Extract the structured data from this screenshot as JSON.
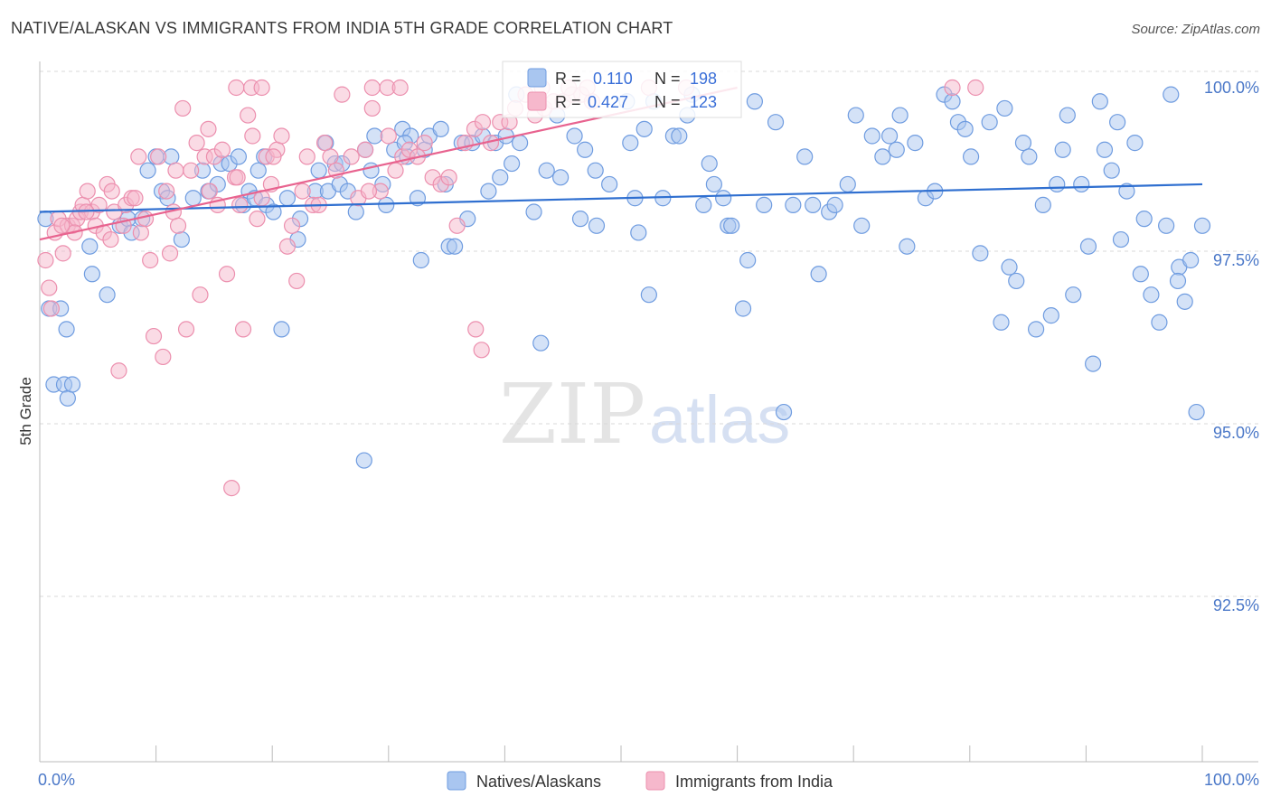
{
  "title": "NATIVE/ALASKAN VS IMMIGRANTS FROM INDIA 5TH GRADE CORRELATION CHART",
  "source": "Source: ZipAtlas.com",
  "watermark": {
    "zip": "ZIP",
    "atlas": "atlas"
  },
  "colors": {
    "blue_fill": "#a9c6f0",
    "blue_stroke": "#6f9ce0",
    "blue_line": "#2f6fd0",
    "pink_fill": "#f6b8cc",
    "pink_stroke": "#ec8fae",
    "pink_line": "#e8638f",
    "tick_text": "#4b78c8",
    "grid": "#d9d9d9"
  },
  "legend_box": {
    "r_label": "R =",
    "n_label": "N =",
    "rows": [
      {
        "series": "Natives/Alaskans",
        "r": "0.110",
        "n": "198",
        "color": "blue"
      },
      {
        "series": "Immigrants from India",
        "r": "0.427",
        "n": "123",
        "color": "pink"
      }
    ]
  },
  "chart_data": {
    "type": "scatter",
    "title": "NATIVE/ALASKAN VS IMMIGRANTS FROM INDIA 5TH GRADE CORRELATION CHART",
    "xlabel": "",
    "ylabel": "5th Grade",
    "xlim": [
      0,
      100
    ],
    "ylim": [
      90.0,
      100.2
    ],
    "x_tick_labels": [
      "0.0%",
      "100.0%"
    ],
    "y_ticks": [
      {
        "value": 100.0,
        "label": "100.0%"
      },
      {
        "value": 97.5,
        "label": "97.5%"
      },
      {
        "value": 95.0,
        "label": "95.0%"
      },
      {
        "value": 92.5,
        "label": "92.5%"
      }
    ],
    "grid": true,
    "legend_position": "bottom-center",
    "series": [
      {
        "name": "Natives/Alaskans",
        "color": "blue",
        "trend": {
          "x0": 0,
          "y0": 98.2,
          "x1": 100,
          "y1": 98.6
        },
        "points": [
          [
            0.5,
            98.1
          ],
          [
            0.8,
            96.8
          ],
          [
            1.2,
            95.7
          ],
          [
            1.8,
            96.8
          ],
          [
            2.1,
            95.7
          ],
          [
            2.3,
            96.5
          ],
          [
            2.4,
            95.5
          ],
          [
            2.8,
            95.7
          ],
          [
            4.3,
            97.7
          ],
          [
            4.5,
            97.3
          ],
          [
            5.8,
            97.0
          ],
          [
            6.9,
            98.0
          ],
          [
            7.6,
            98.1
          ],
          [
            7.9,
            97.9
          ],
          [
            8.8,
            98.1
          ],
          [
            9.3,
            98.8
          ],
          [
            10.0,
            99.0
          ],
          [
            10.5,
            98.5
          ],
          [
            11.0,
            98.4
          ],
          [
            11.3,
            99.0
          ],
          [
            12.2,
            97.8
          ],
          [
            13.2,
            98.4
          ],
          [
            14.0,
            98.8
          ],
          [
            14.5,
            98.5
          ],
          [
            15.3,
            98.6
          ],
          [
            15.6,
            98.9
          ],
          [
            16.3,
            98.9
          ],
          [
            17.1,
            99.0
          ],
          [
            17.5,
            98.3
          ],
          [
            18.0,
            98.5
          ],
          [
            18.5,
            98.4
          ],
          [
            18.8,
            98.8
          ],
          [
            19.3,
            99.0
          ],
          [
            19.5,
            98.3
          ],
          [
            20.1,
            98.2
          ],
          [
            20.8,
            96.5
          ],
          [
            21.3,
            98.4
          ],
          [
            22.2,
            97.8
          ],
          [
            22.4,
            98.1
          ],
          [
            23.7,
            98.5
          ],
          [
            24.0,
            98.8
          ],
          [
            24.6,
            99.2
          ],
          [
            24.8,
            98.5
          ],
          [
            25.4,
            98.9
          ],
          [
            25.8,
            98.6
          ],
          [
            26.0,
            98.9
          ],
          [
            26.5,
            98.5
          ],
          [
            27.2,
            98.2
          ],
          [
            27.9,
            94.6
          ],
          [
            28.0,
            99.1
          ],
          [
            28.5,
            98.8
          ],
          [
            28.8,
            99.3
          ],
          [
            29.5,
            98.6
          ],
          [
            29.8,
            98.3
          ],
          [
            30.5,
            99.1
          ],
          [
            31.2,
            99.4
          ],
          [
            31.6,
            99.0
          ],
          [
            31.9,
            99.3
          ],
          [
            32.5,
            98.4
          ],
          [
            32.8,
            97.5
          ],
          [
            33.1,
            99.1
          ],
          [
            33.5,
            99.3
          ],
          [
            34.5,
            99.4
          ],
          [
            34.9,
            98.6
          ],
          [
            35.2,
            97.7
          ],
          [
            35.7,
            97.7
          ],
          [
            36.3,
            99.2
          ],
          [
            36.8,
            98.1
          ],
          [
            37.2,
            99.2
          ],
          [
            38.1,
            99.3
          ],
          [
            38.6,
            98.5
          ],
          [
            39.2,
            99.2
          ],
          [
            39.6,
            98.7
          ],
          [
            40.1,
            99.3
          ],
          [
            40.6,
            98.9
          ],
          [
            41.0,
            99.9
          ],
          [
            41.3,
            99.2
          ],
          [
            42.5,
            98.2
          ],
          [
            43.1,
            96.3
          ],
          [
            43.6,
            98.8
          ],
          [
            44.8,
            98.7
          ],
          [
            46.5,
            98.1
          ],
          [
            46.9,
            99.1
          ],
          [
            47.8,
            98.8
          ],
          [
            47.9,
            98.0
          ],
          [
            49.0,
            98.6
          ],
          [
            50.5,
            99.8
          ],
          [
            50.8,
            99.2
          ],
          [
            51.2,
            98.4
          ],
          [
            51.5,
            97.9
          ],
          [
            52.0,
            99.4
          ],
          [
            52.4,
            97.0
          ],
          [
            52.8,
            99.8
          ],
          [
            53.6,
            98.4
          ],
          [
            54.5,
            99.3
          ],
          [
            55.0,
            99.3
          ],
          [
            56.1,
            99.9
          ],
          [
            57.1,
            98.3
          ],
          [
            57.6,
            98.9
          ],
          [
            58.0,
            98.6
          ],
          [
            58.8,
            98.4
          ],
          [
            59.2,
            98.0
          ],
          [
            59.5,
            98.0
          ],
          [
            60.5,
            96.8
          ],
          [
            60.9,
            97.5
          ],
          [
            61.5,
            99.8
          ],
          [
            62.3,
            98.3
          ],
          [
            63.3,
            99.5
          ],
          [
            64.0,
            95.3
          ],
          [
            64.8,
            98.3
          ],
          [
            65.8,
            99.0
          ],
          [
            66.5,
            98.3
          ],
          [
            67.0,
            97.3
          ],
          [
            67.9,
            98.2
          ],
          [
            68.4,
            98.3
          ],
          [
            69.5,
            98.6
          ],
          [
            70.7,
            98.0
          ],
          [
            71.6,
            99.3
          ],
          [
            72.5,
            99.0
          ],
          [
            73.1,
            99.3
          ],
          [
            73.7,
            99.1
          ],
          [
            74.6,
            97.7
          ],
          [
            75.3,
            99.2
          ],
          [
            76.2,
            98.4
          ],
          [
            77.0,
            98.5
          ],
          [
            77.8,
            99.9
          ],
          [
            78.5,
            99.8
          ],
          [
            79.0,
            99.5
          ],
          [
            79.6,
            99.4
          ],
          [
            80.1,
            99.0
          ],
          [
            80.9,
            97.6
          ],
          [
            81.7,
            99.5
          ],
          [
            82.7,
            96.6
          ],
          [
            83.0,
            99.7
          ],
          [
            83.4,
            97.4
          ],
          [
            84.0,
            97.2
          ],
          [
            84.6,
            99.2
          ],
          [
            85.1,
            99.0
          ],
          [
            85.7,
            96.5
          ],
          [
            86.3,
            98.3
          ],
          [
            87.0,
            96.7
          ],
          [
            87.5,
            98.6
          ],
          [
            88.0,
            99.1
          ],
          [
            88.9,
            97.0
          ],
          [
            89.6,
            98.6
          ],
          [
            90.2,
            97.7
          ],
          [
            90.6,
            96.0
          ],
          [
            91.2,
            99.8
          ],
          [
            91.6,
            99.1
          ],
          [
            92.2,
            98.8
          ],
          [
            93.0,
            97.8
          ],
          [
            93.5,
            98.5
          ],
          [
            94.2,
            99.2
          ],
          [
            94.7,
            97.3
          ],
          [
            95.0,
            98.1
          ],
          [
            95.6,
            97.0
          ],
          [
            96.3,
            96.6
          ],
          [
            96.9,
            98.0
          ],
          [
            97.3,
            99.9
          ],
          [
            98.0,
            97.4
          ],
          [
            98.5,
            96.9
          ],
          [
            99.0,
            97.5
          ],
          [
            99.5,
            95.3
          ],
          [
            100.0,
            98.0
          ],
          [
            31.4,
            99.2
          ],
          [
            46.0,
            99.3
          ],
          [
            55.7,
            99.6
          ],
          [
            44.5,
            99.6
          ],
          [
            70.2,
            99.6
          ],
          [
            74.0,
            99.6
          ],
          [
            88.4,
            99.6
          ],
          [
            92.7,
            99.5
          ],
          [
            97.9,
            97.2
          ]
        ]
      },
      {
        "name": "Immigrants from India",
        "color": "pink",
        "trend": {
          "x0": 0,
          "y0": 97.8,
          "x1": 60,
          "y1": 100.0
        },
        "points": [
          [
            0.5,
            97.5
          ],
          [
            0.8,
            97.1
          ],
          [
            1.0,
            96.8
          ],
          [
            1.3,
            97.9
          ],
          [
            1.6,
            98.1
          ],
          [
            2.0,
            97.6
          ],
          [
            2.4,
            98.0
          ],
          [
            2.8,
            98.0
          ],
          [
            3.2,
            98.1
          ],
          [
            3.5,
            98.2
          ],
          [
            3.7,
            98.3
          ],
          [
            4.1,
            98.5
          ],
          [
            4.5,
            98.2
          ],
          [
            4.8,
            98.0
          ],
          [
            5.1,
            98.3
          ],
          [
            5.5,
            97.9
          ],
          [
            5.8,
            98.6
          ],
          [
            6.1,
            97.8
          ],
          [
            6.4,
            98.2
          ],
          [
            6.8,
            95.9
          ],
          [
            7.2,
            98.0
          ],
          [
            7.4,
            98.3
          ],
          [
            7.9,
            98.4
          ],
          [
            8.2,
            98.4
          ],
          [
            8.7,
            97.9
          ],
          [
            9.1,
            98.1
          ],
          [
            9.5,
            97.5
          ],
          [
            9.8,
            96.4
          ],
          [
            10.2,
            99.0
          ],
          [
            10.6,
            96.1
          ],
          [
            10.9,
            98.5
          ],
          [
            11.2,
            97.6
          ],
          [
            11.5,
            98.2
          ],
          [
            11.9,
            98.0
          ],
          [
            12.3,
            99.7
          ],
          [
            12.6,
            96.5
          ],
          [
            13.0,
            98.8
          ],
          [
            13.5,
            99.2
          ],
          [
            13.8,
            97.0
          ],
          [
            14.2,
            99.0
          ],
          [
            14.6,
            98.5
          ],
          [
            15.0,
            99.0
          ],
          [
            15.3,
            98.3
          ],
          [
            15.7,
            99.1
          ],
          [
            16.1,
            97.3
          ],
          [
            16.5,
            94.2
          ],
          [
            16.8,
            98.7
          ],
          [
            17.2,
            98.3
          ],
          [
            17.5,
            96.5
          ],
          [
            17.9,
            99.6
          ],
          [
            18.3,
            99.3
          ],
          [
            18.7,
            98.1
          ],
          [
            19.1,
            98.4
          ],
          [
            19.5,
            99.0
          ],
          [
            19.9,
            98.6
          ],
          [
            20.4,
            99.1
          ],
          [
            20.8,
            99.3
          ],
          [
            21.3,
            97.7
          ],
          [
            21.7,
            98.0
          ],
          [
            22.1,
            97.2
          ],
          [
            22.6,
            98.5
          ],
          [
            23.0,
            99.0
          ],
          [
            23.5,
            98.3
          ],
          [
            24.0,
            98.3
          ],
          [
            24.5,
            99.2
          ],
          [
            25.0,
            99.0
          ],
          [
            25.5,
            98.8
          ],
          [
            26.0,
            99.9
          ],
          [
            26.8,
            99.0
          ],
          [
            27.4,
            98.4
          ],
          [
            28.0,
            99.1
          ],
          [
            28.6,
            99.7
          ],
          [
            29.3,
            98.5
          ],
          [
            30.0,
            99.3
          ],
          [
            30.6,
            98.8
          ],
          [
            31.2,
            99.0
          ],
          [
            31.8,
            99.1
          ],
          [
            32.5,
            99.0
          ],
          [
            33.1,
            99.2
          ],
          [
            33.8,
            98.7
          ],
          [
            34.5,
            98.6
          ],
          [
            35.2,
            98.7
          ],
          [
            35.9,
            98.0
          ],
          [
            36.6,
            99.2
          ],
          [
            37.4,
            99.4
          ],
          [
            38.1,
            99.5
          ],
          [
            38.8,
            99.2
          ],
          [
            39.6,
            99.5
          ],
          [
            40.4,
            99.5
          ],
          [
            40.9,
            99.7
          ],
          [
            41.8,
            99.9
          ],
          [
            42.6,
            99.6
          ],
          [
            43.4,
            99.7
          ],
          [
            44.2,
            99.8
          ],
          [
            45.0,
            99.8
          ],
          [
            45.8,
            99.9
          ],
          [
            46.6,
            99.9
          ],
          [
            47.5,
            99.8
          ],
          [
            37.5,
            96.5
          ],
          [
            38.0,
            96.2
          ],
          [
            28.3,
            98.5
          ],
          [
            20.1,
            99.0
          ],
          [
            17.0,
            98.7
          ],
          [
            14.5,
            99.4
          ],
          [
            11.7,
            98.8
          ],
          [
            8.5,
            99.0
          ],
          [
            6.2,
            98.5
          ],
          [
            4.0,
            98.2
          ],
          [
            3.0,
            97.9
          ],
          [
            1.9,
            98.0
          ],
          [
            16.9,
            100.0
          ],
          [
            18.2,
            100.0
          ],
          [
            19.1,
            100.0
          ],
          [
            28.6,
            100.0
          ],
          [
            29.9,
            100.0
          ],
          [
            31.0,
            100.0
          ],
          [
            43.2,
            100.0
          ],
          [
            45.5,
            100.0
          ],
          [
            47.1,
            100.0
          ],
          [
            52.4,
            100.0
          ],
          [
            55.6,
            100.0
          ],
          [
            78.5,
            100.0
          ],
          [
            80.5,
            100.0
          ]
        ]
      }
    ]
  },
  "bottom_legend": [
    {
      "label": "Natives/Alaskans",
      "color": "blue"
    },
    {
      "label": "Immigrants from India",
      "color": "pink"
    }
  ]
}
